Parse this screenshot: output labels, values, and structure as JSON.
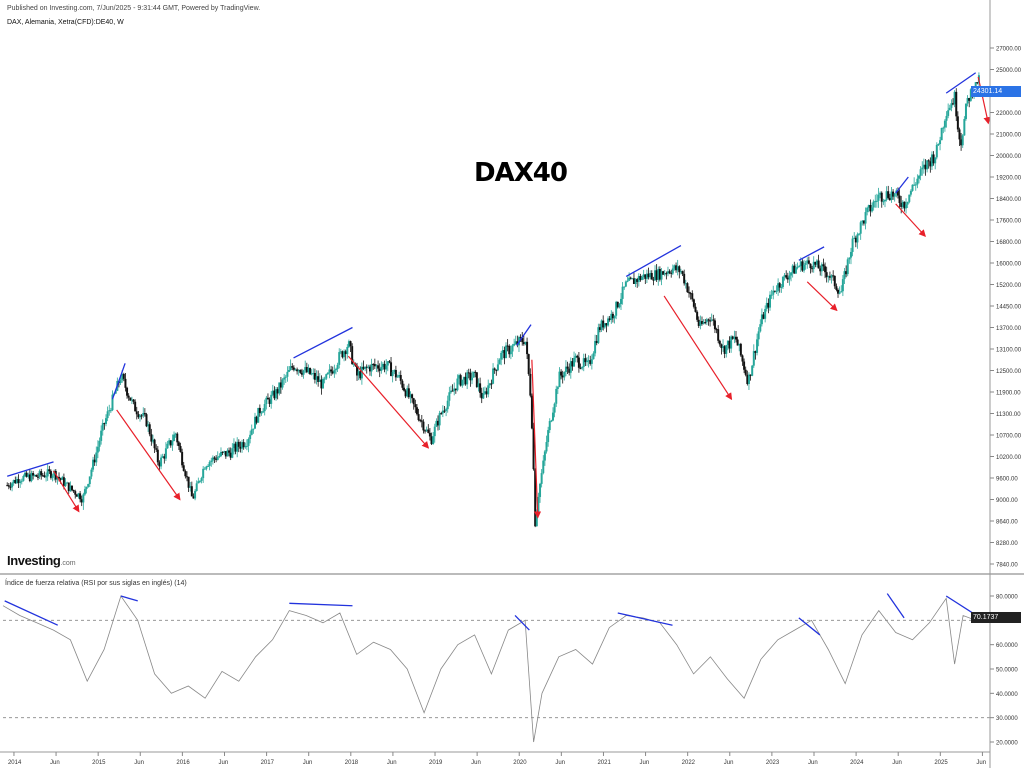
{
  "header": {
    "published": "Published on Investing.com, 7/Jun/2025 - 9:31:44 GMT, Powered by TradingView.",
    "symbol": "DAX, Alemania, Xetra(CFD):DE40, W"
  },
  "watermark": {
    "title": "DAX40",
    "logo": "Investing",
    "logo_suffix": ".com"
  },
  "price_tag": "24301.14",
  "rsi_tag": "70.1737",
  "rsi_title": "Índice de fuerza relativa (RSI por sus siglas en inglés) (14)",
  "colors": {
    "up": "#26a69a",
    "down": "#111111",
    "trendline_blue": "#2233dd",
    "arrow_red": "#e8202a",
    "rsi_line": "#888888"
  },
  "chart_data": [
    {
      "type": "candlestick",
      "interval": "weekly",
      "y_ticks": [
        "27000.00",
        "25000.00",
        "23000.00",
        "22000.00",
        "21000.00",
        "20000.00",
        "19200.00",
        "18400.00",
        "17600.00",
        "16800.00",
        "16000.00",
        "15200.00",
        "14450.00",
        "13700.00",
        "13100.00",
        "12500.00",
        "11900.00",
        "11300.00",
        "10700.00",
        "10200.00",
        "9600.00",
        "9000.00",
        "8640.00",
        "8280.00",
        "7840.00"
      ],
      "x_ticks": [
        "2014",
        "Jun",
        "2015",
        "Jun",
        "2016",
        "Jun",
        "2017",
        "Jun",
        "2018",
        "Jun",
        "2019",
        "Jun",
        "2020",
        "Jun",
        "2021",
        "Jun",
        "2022",
        "Jun",
        "2023",
        "Jun",
        "2024",
        "Jun",
        "2025",
        "Jun"
      ],
      "close_path": [
        [
          2013.95,
          9400
        ],
        [
          2014.1,
          9600
        ],
        [
          2014.3,
          9650
        ],
        [
          2014.5,
          9750
        ],
        [
          2014.7,
          9300
        ],
        [
          2014.85,
          9050
        ],
        [
          2014.95,
          9850
        ],
        [
          2015.1,
          11000
        ],
        [
          2015.25,
          12000
        ],
        [
          2015.3,
          12350
        ],
        [
          2015.45,
          11500
        ],
        [
          2015.6,
          11100
        ],
        [
          2015.75,
          10000
        ],
        [
          2015.95,
          10750
        ],
        [
          2016.05,
          9900
        ],
        [
          2016.15,
          9000
        ],
        [
          2016.3,
          10000
        ],
        [
          2016.45,
          10200
        ],
        [
          2016.6,
          10300
        ],
        [
          2016.8,
          10600
        ],
        [
          2016.95,
          11400
        ],
        [
          2017.15,
          11900
        ],
        [
          2017.35,
          12650
        ],
        [
          2017.55,
          12400
        ],
        [
          2017.7,
          12100
        ],
        [
          2017.9,
          12900
        ],
        [
          2018.0,
          13250
        ],
        [
          2018.1,
          12350
        ],
        [
          2018.25,
          12600
        ],
        [
          2018.45,
          12650
        ],
        [
          2018.6,
          12300
        ],
        [
          2018.8,
          11400
        ],
        [
          2018.98,
          10580
        ],
        [
          2019.1,
          11300
        ],
        [
          2019.3,
          12200
        ],
        [
          2019.5,
          12350
        ],
        [
          2019.6,
          11700
        ],
        [
          2019.8,
          12900
        ],
        [
          2019.98,
          13200
        ],
        [
          2020.1,
          13400
        ],
        [
          2020.17,
          11700
        ],
        [
          2020.22,
          8600
        ],
        [
          2020.35,
          10500
        ],
        [
          2020.5,
          12300
        ],
        [
          2020.7,
          12800
        ],
        [
          2020.85,
          12600
        ],
        [
          2020.98,
          13700
        ],
        [
          2021.15,
          14200
        ],
        [
          2021.3,
          15200
        ],
        [
          2021.5,
          15500
        ],
        [
          2021.7,
          15600
        ],
        [
          2021.85,
          15800
        ],
        [
          2021.95,
          15700
        ],
        [
          2022.1,
          14500
        ],
        [
          2022.17,
          13700
        ],
        [
          2022.3,
          14100
        ],
        [
          2022.45,
          13100
        ],
        [
          2022.6,
          13400
        ],
        [
          2022.75,
          12200
        ],
        [
          2022.9,
          13900
        ],
        [
          2023.05,
          15000
        ],
        [
          2023.2,
          15500
        ],
        [
          2023.35,
          15900
        ],
        [
          2023.5,
          16000
        ],
        [
          2023.7,
          15600
        ],
        [
          2023.85,
          14900
        ],
        [
          2023.98,
          16700
        ],
        [
          2024.15,
          17800
        ],
        [
          2024.3,
          18500
        ],
        [
          2024.45,
          18600
        ],
        [
          2024.6,
          18200
        ],
        [
          2024.75,
          19100
        ],
        [
          2024.9,
          19800
        ],
        [
          2024.98,
          20100
        ],
        [
          2025.1,
          22100
        ],
        [
          2025.2,
          22700
        ],
        [
          2025.27,
          20500
        ],
        [
          2025.35,
          22500
        ],
        [
          2025.45,
          23600
        ],
        [
          2025.5,
          24300
        ]
      ]
    },
    {
      "type": "line",
      "title": "Índice de fuerza relativa (RSI por sus siglas en inglés) (14)",
      "y_ticks": [
        "80.0000",
        "70.0000",
        "60.0000",
        "50.0000",
        "40.0000",
        "30.0000",
        "20.0000"
      ],
      "levels": [
        70,
        30
      ],
      "x": [
        2013.9,
        2014.1,
        2014.3,
        2014.5,
        2014.7,
        2014.9,
        2015.1,
        2015.3,
        2015.5,
        2015.7,
        2015.9,
        2016.1,
        2016.3,
        2016.5,
        2016.7,
        2016.9,
        2017.1,
        2017.3,
        2017.5,
        2017.7,
        2017.9,
        2018.1,
        2018.3,
        2018.5,
        2018.7,
        2018.9,
        2019.1,
        2019.3,
        2019.5,
        2019.7,
        2019.9,
        2020.1,
        2020.2,
        2020.3,
        2020.5,
        2020.7,
        2020.9,
        2021.1,
        2021.3,
        2021.5,
        2021.7,
        2021.9,
        2022.1,
        2022.3,
        2022.5,
        2022.7,
        2022.9,
        2023.1,
        2023.3,
        2023.5,
        2023.7,
        2023.9,
        2024.1,
        2024.3,
        2024.5,
        2024.7,
        2024.9,
        2025.1,
        2025.2,
        2025.3,
        2025.45
      ],
      "y": [
        76,
        72,
        69,
        66,
        62,
        45,
        58,
        80,
        70,
        48,
        40,
        43,
        38,
        49,
        45,
        55,
        62,
        74,
        72,
        69,
        73,
        56,
        61,
        58,
        50,
        32,
        50,
        60,
        64,
        48,
        66,
        70,
        20,
        40,
        55,
        58,
        52,
        67,
        72,
        71,
        69,
        60,
        48,
        55,
        46,
        38,
        54,
        62,
        66,
        70,
        58,
        44,
        64,
        74,
        65,
        62,
        69,
        79,
        52,
        72,
        70
      ]
    }
  ],
  "annotations": {
    "blue_trendlines": 14,
    "red_arrows": 13
  }
}
